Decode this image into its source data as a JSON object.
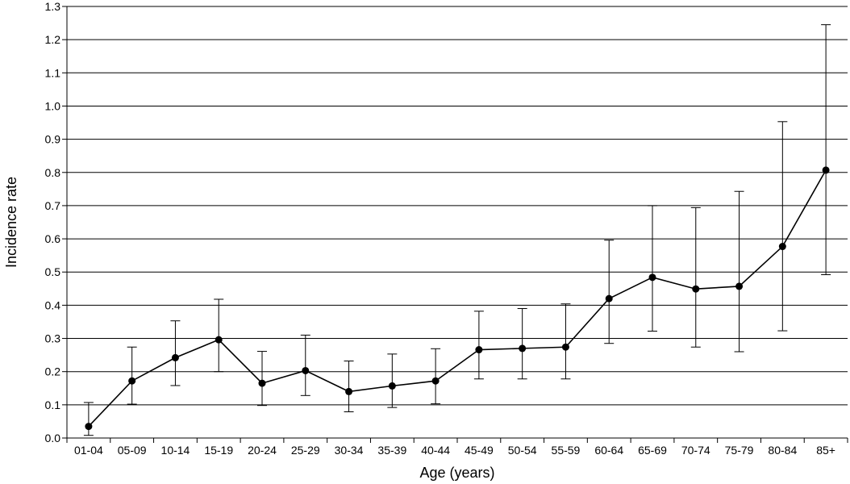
{
  "chart_data": {
    "type": "line",
    "title": "",
    "xlabel": "Age (years)",
    "ylabel": "Incidence rate",
    "categories": [
      "01-04",
      "05-09",
      "10-14",
      "15-19",
      "20-24",
      "25-29",
      "30-34",
      "35-39",
      "40-44",
      "45-49",
      "50-54",
      "55-59",
      "60-64",
      "65-69",
      "70-74",
      "75-79",
      "80-84",
      "85+"
    ],
    "yticks": [
      "0.0",
      "0.1",
      "0.2",
      "0.3",
      "0.4",
      "0.5",
      "0.6",
      "0.7",
      "0.8",
      "0.9",
      "1.0",
      "1.1",
      "1.2",
      "1.3"
    ],
    "ylim": [
      0,
      1.3
    ],
    "grid": "horizontal",
    "series": [
      {
        "values": [
          0.035,
          0.172,
          0.242,
          0.296,
          0.165,
          0.203,
          0.14,
          0.157,
          0.172,
          0.266,
          0.27,
          0.274,
          0.42,
          0.484,
          0.449,
          0.457,
          0.577,
          0.807
        ],
        "lower": [
          0.008,
          0.102,
          0.158,
          0.2,
          0.098,
          0.128,
          0.079,
          0.092,
          0.103,
          0.178,
          0.178,
          0.178,
          0.285,
          0.322,
          0.274,
          0.26,
          0.323,
          0.492
        ],
        "upper": [
          0.107,
          0.274,
          0.353,
          0.418,
          0.261,
          0.31,
          0.232,
          0.253,
          0.269,
          0.382,
          0.39,
          0.404,
          0.596,
          0.7,
          0.694,
          0.743,
          0.953,
          1.245
        ],
        "color": "#000000"
      }
    ]
  }
}
